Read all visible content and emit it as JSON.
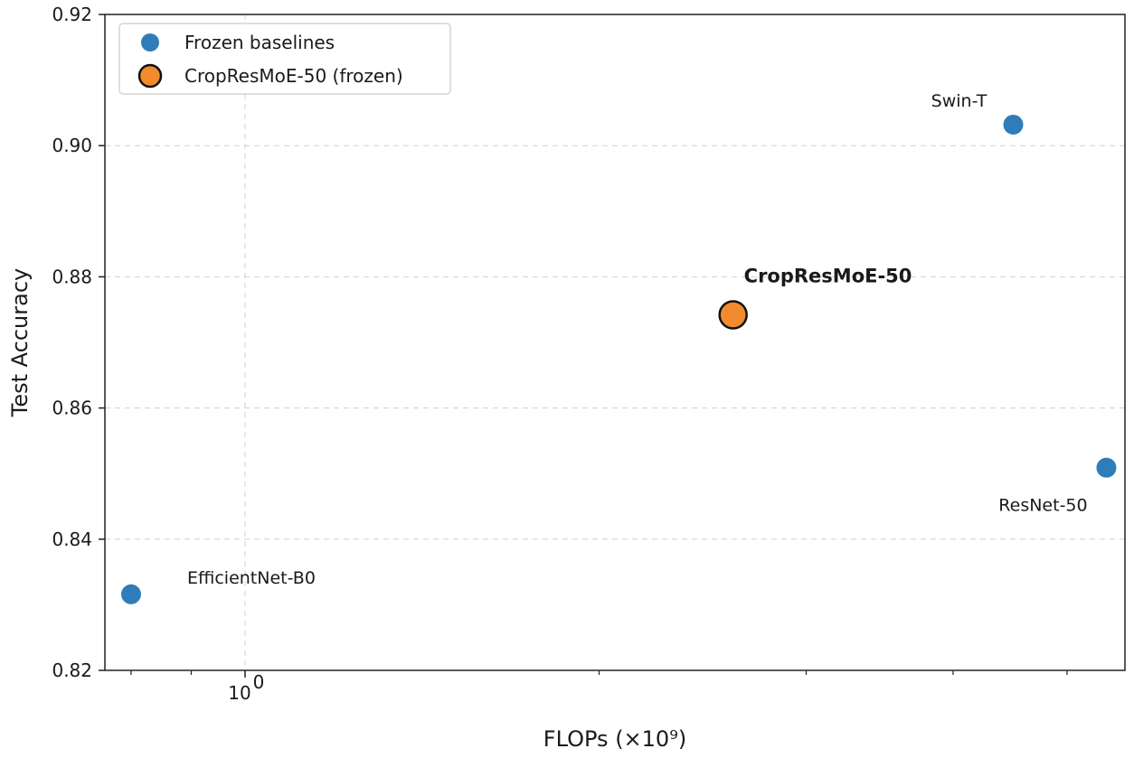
{
  "chart_data": {
    "type": "scatter",
    "xscale": "log",
    "xlabel": "FLOPs (×10⁹)",
    "ylabel": "Test Accuracy",
    "ylim": [
      0.82,
      0.92
    ],
    "xlim": [
      0.76,
      5.6
    ],
    "yticks": [
      "0.82",
      "0.84",
      "0.86",
      "0.88",
      "0.90",
      "0.92"
    ],
    "ytick_values": [
      0.82,
      0.84,
      0.86,
      0.88,
      0.9,
      0.92
    ],
    "xtick_major": {
      "value": 1.0,
      "base": "10",
      "exp": "0"
    },
    "xtick_minor": [
      0.8,
      0.9,
      2,
      3,
      4,
      5
    ],
    "grid": true,
    "legend_position": "top-left",
    "colors": {
      "baseline": "#2e7dba",
      "ours": "#f28a2e",
      "ours_edge": "#111111"
    },
    "series": [
      {
        "name": "Frozen baselines",
        "style": "baseline",
        "points": [
          {
            "label": "EfficientNet-B0",
            "x": 0.8,
            "y": 0.8316
          },
          {
            "label": "Swin-T",
            "x": 4.5,
            "y": 0.9032
          },
          {
            "label": "ResNet-50",
            "x": 5.4,
            "y": 0.8509
          }
        ]
      },
      {
        "name": "CropResMoE-50 (frozen)",
        "style": "ours",
        "points": [
          {
            "label": "CropResMoE-50",
            "x": 2.6,
            "y": 0.8742,
            "bold": true
          }
        ]
      }
    ]
  }
}
